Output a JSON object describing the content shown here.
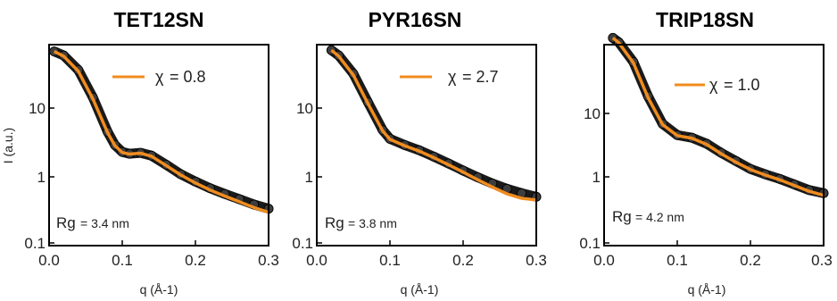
{
  "chart_data": [
    {
      "type": "line",
      "title": "TET12SN",
      "xlabel": "q (Å-1)",
      "ylabel": "I (a.u.)",
      "xlim": [
        0.0,
        0.3
      ],
      "ylim": [
        0.08,
        60
      ],
      "yscale": "log",
      "xticks": [
        "0.0",
        "0.1",
        "0.2",
        "0.3"
      ],
      "yticks": [
        "0.1",
        "1",
        "10"
      ],
      "legend": {
        "symbol": "χ",
        "text": "= 0.8"
      },
      "rg": {
        "label": "Rg",
        "value": "= 3.4 nm"
      },
      "series": [
        {
          "name": "data",
          "color": "#1a1a1a",
          "x": [
            0.007,
            0.02,
            0.04,
            0.06,
            0.08,
            0.09,
            0.1,
            0.11,
            0.125,
            0.14,
            0.16,
            0.18,
            0.2,
            0.22,
            0.24,
            0.26,
            0.28,
            0.3
          ],
          "y": [
            48,
            42,
            26,
            10.5,
            3.4,
            2.2,
            1.75,
            1.65,
            1.7,
            1.55,
            1.15,
            0.84,
            0.66,
            0.53,
            0.44,
            0.37,
            0.31,
            0.27
          ]
        },
        {
          "name": "fit",
          "color": "#f08c1f",
          "x": [
            0.007,
            0.02,
            0.04,
            0.06,
            0.08,
            0.09,
            0.1,
            0.11,
            0.125,
            0.14,
            0.16,
            0.18,
            0.2,
            0.22,
            0.24,
            0.26,
            0.28,
            0.3
          ],
          "y": [
            48,
            41,
            25,
            10,
            3.3,
            2.15,
            1.72,
            1.63,
            1.68,
            1.52,
            1.12,
            0.82,
            0.63,
            0.5,
            0.41,
            0.34,
            0.28,
            0.24
          ]
        }
      ]
    },
    {
      "type": "line",
      "title": "PYR16SN",
      "xlabel": "q (Å-1)",
      "ylabel": "",
      "xlim": [
        0.0,
        0.3
      ],
      "ylim": [
        0.08,
        60
      ],
      "yscale": "log",
      "xticks": [
        "0.0",
        "0.1",
        "0.2",
        "0.3"
      ],
      "yticks": [
        "0.1",
        "1",
        "10"
      ],
      "legend": {
        "symbol": "χ",
        "text": "= 2.7"
      },
      "rg": {
        "label": "Rg",
        "value": "= 3.8 nm"
      },
      "series": [
        {
          "name": "data",
          "color": "#1a1a1a",
          "x": [
            0.02,
            0.03,
            0.05,
            0.07,
            0.09,
            0.1,
            0.12,
            0.14,
            0.16,
            0.18,
            0.2,
            0.22,
            0.24,
            0.26,
            0.28,
            0.3
          ],
          "y": [
            50,
            42,
            23,
            9,
            3.6,
            2.7,
            2.2,
            1.85,
            1.5,
            1.2,
            0.95,
            0.76,
            0.62,
            0.52,
            0.45,
            0.4
          ]
        },
        {
          "name": "fit",
          "color": "#f08c1f",
          "x": [
            0.02,
            0.03,
            0.05,
            0.07,
            0.09,
            0.1,
            0.12,
            0.14,
            0.16,
            0.18,
            0.2,
            0.22,
            0.24,
            0.26,
            0.28,
            0.3
          ],
          "y": [
            50,
            41,
            22,
            8.6,
            3.5,
            2.65,
            2.15,
            1.8,
            1.45,
            1.15,
            0.9,
            0.7,
            0.55,
            0.44,
            0.38,
            0.36
          ]
        }
      ]
    },
    {
      "type": "line",
      "title": "TRIP18SN",
      "xlabel": "q (Å-1)",
      "ylabel": "",
      "xlim": [
        0.0,
        0.3
      ],
      "ylim": [
        0.08,
        60
      ],
      "yscale": "log",
      "xticks": [
        "0.0",
        "0.1",
        "0.2",
        "0.3"
      ],
      "yticks": [
        "0.1",
        "1",
        "10"
      ],
      "legend": {
        "symbol": "χ",
        "text": "= 1.0"
      },
      "rg": {
        "label": "Rg",
        "value": "= 4.2 nm"
      },
      "series": [
        {
          "name": "data",
          "color": "#1a1a1a",
          "x": [
            0.012,
            0.02,
            0.04,
            0.06,
            0.08,
            0.1,
            0.12,
            0.14,
            0.16,
            0.18,
            0.2,
            0.22,
            0.24,
            0.26,
            0.28,
            0.3
          ],
          "y": [
            75,
            65,
            34,
            11,
            4.4,
            3.05,
            2.8,
            2.3,
            1.7,
            1.3,
            1.0,
            0.84,
            0.72,
            0.6,
            0.5,
            0.45
          ]
        },
        {
          "name": "fit",
          "color": "#f08c1f",
          "x": [
            0.012,
            0.02,
            0.04,
            0.06,
            0.08,
            0.1,
            0.12,
            0.14,
            0.16,
            0.18,
            0.2,
            0.22,
            0.24,
            0.26,
            0.28,
            0.3
          ],
          "y": [
            75,
            64,
            33,
            10.5,
            4.3,
            3.0,
            2.75,
            2.25,
            1.65,
            1.25,
            0.98,
            0.82,
            0.7,
            0.58,
            0.48,
            0.42
          ]
        }
      ]
    }
  ]
}
